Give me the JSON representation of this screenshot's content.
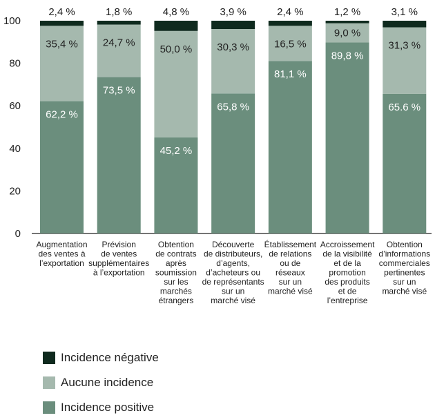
{
  "chart_data": {
    "type": "bar",
    "stacked": true,
    "ylim": [
      0,
      100
    ],
    "yticks": [
      0,
      20,
      40,
      60,
      80,
      100
    ],
    "grid": false,
    "legend_position": "bottom-left",
    "categories": [
      [
        "Augmentation",
        "des ventes à",
        "l’exportation"
      ],
      [
        "Prévision",
        "de ventes",
        "supplémentaires",
        "à l’exportation"
      ],
      [
        "Obtention",
        "de contrats",
        "après",
        "soumission",
        "sur les",
        "marchés",
        "étrangers"
      ],
      [
        "Découverte",
        "de distributeurs,",
        "d’agents,",
        "d’acheteurs ou",
        "de représentants",
        "sur un",
        "marché visé"
      ],
      [
        "Établissement",
        "de relations",
        "ou de",
        "réseaux",
        "sur un",
        "marché visé"
      ],
      [
        "Accroissement",
        "de la visibilité",
        "et de la",
        "promotion",
        "des produits",
        "et de",
        "l’entreprise"
      ],
      [
        "Obtention",
        "d’informations",
        "commerciales",
        "pertinentes",
        "sur un",
        "marché visé"
      ]
    ],
    "series": [
      {
        "name": "Incidence positive",
        "color": "#6b8e7d",
        "label_color": "#ffffff",
        "values": [
          62.2,
          73.5,
          45.2,
          65.8,
          81.1,
          89.8,
          65.6
        ],
        "labels": [
          "62,2 %",
          "73,5 %",
          "45,2 %",
          "65,8 %",
          "81,1 %",
          "89,8 %",
          "65.6 %"
        ]
      },
      {
        "name": "Aucune incidence",
        "color": "#a5b9ae",
        "label_color": "#222222",
        "values": [
          35.4,
          24.7,
          50.0,
          30.3,
          16.5,
          9.0,
          31.3
        ],
        "labels": [
          "35,4 %",
          "24,7 %",
          "50,0 %",
          "30,3 %",
          "16,5 %",
          "9,0 %",
          "31,3 %"
        ]
      },
      {
        "name": "Incidence négative",
        "color": "#0f2a1e",
        "label_color": "#222222",
        "values": [
          2.4,
          1.8,
          4.8,
          3.9,
          2.4,
          1.2,
          3.1
        ],
        "labels": [
          "2,4 %",
          "1,8 %",
          "4,8 %",
          "3,9 %",
          "2,4 %",
          "1,2 %",
          "3,1 %"
        ]
      }
    ],
    "legend": [
      {
        "name": "Incidence négative",
        "color": "#0f2a1e"
      },
      {
        "name": "Aucune incidence",
        "color": "#a5b9ae"
      },
      {
        "name": "Incidence positive",
        "color": "#6b8e7d"
      }
    ]
  }
}
